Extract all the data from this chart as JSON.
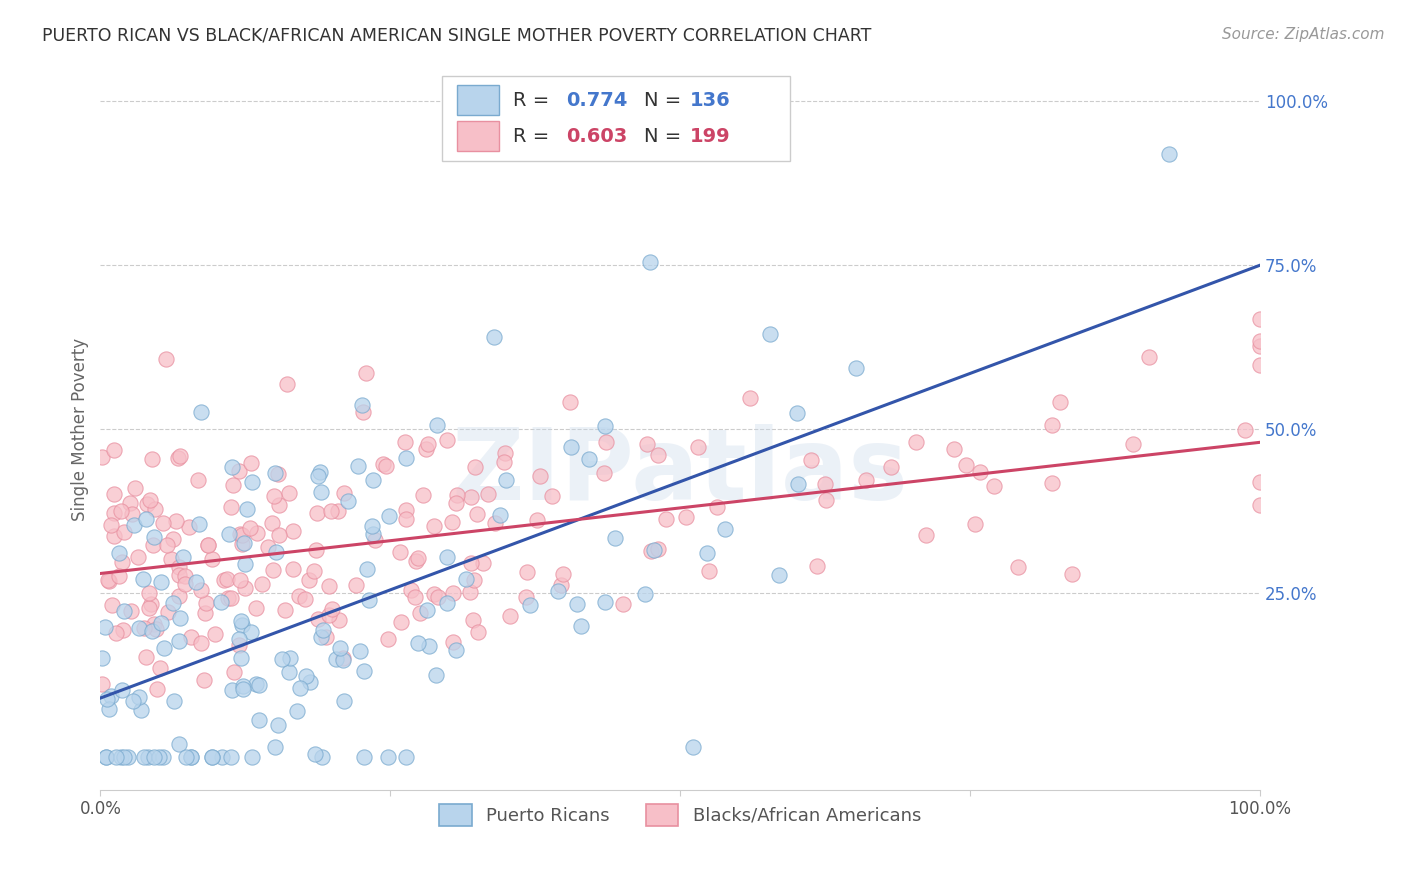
{
  "title": "PUERTO RICAN VS BLACK/AFRICAN AMERICAN SINGLE MOTHER POVERTY CORRELATION CHART",
  "source": "Source: ZipAtlas.com",
  "ylabel": "Single Mother Poverty",
  "ytick_labels": [
    "25.0%",
    "50.0%",
    "75.0%",
    "100.0%"
  ],
  "ytick_positions": [
    0.25,
    0.5,
    0.75,
    1.0
  ],
  "watermark": "ZIPatlas",
  "legend_entries": [
    {
      "label": "Puerto Ricans",
      "R": 0.774,
      "N": 136
    },
    {
      "label": "Blacks/African Americans",
      "R": 0.603,
      "N": 199
    }
  ],
  "blue_edge_color": "#7aaacf",
  "pink_edge_color": "#e890a0",
  "blue_scatter_color": "#b8d4ec",
  "pink_scatter_color": "#f7bfc8",
  "blue_line_color": "#3355aa",
  "pink_line_color": "#cc4466",
  "blue_text_color": "#4477cc",
  "pink_text_color": "#cc4466",
  "ytick_color": "#4477cc",
  "xlim": [
    0.0,
    1.0
  ],
  "ylim": [
    -0.05,
    1.05
  ],
  "seed": 12345,
  "n_blue": 136,
  "n_pink": 199,
  "blue_slope": 0.66,
  "blue_intercept": 0.09,
  "pink_slope": 0.2,
  "pink_intercept": 0.28,
  "background_color": "#ffffff",
  "grid_color": "#cccccc",
  "title_color": "#333333",
  "source_color": "#999999",
  "ylabel_color": "#666666"
}
